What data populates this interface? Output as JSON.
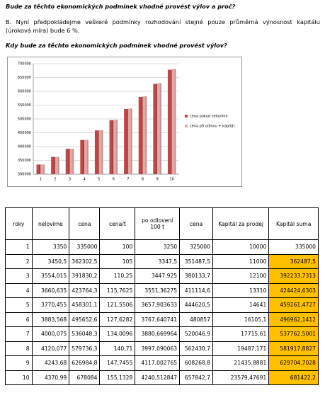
{
  "heading": "Bude za těchto ekonomických  podmínek  vhodné provést výlov a proč?",
  "paragraph": "B.  Nyní předpokládejme veškeré podmínky rozhodování stejné pouze průměrná výnosnost kapitálu (úroková míra) bude 6 %.",
  "question": "Kdy bude za těchto ekonomických  podmínek  vhodné provést výlov?",
  "chart_data": {
    "type": "bar",
    "categories": [
      "1",
      "2",
      "3",
      "4",
      "5",
      "6",
      "7",
      "8",
      "9",
      "10"
    ],
    "series": [
      {
        "name": "cena pokud nelovíme",
        "color": "#b94a48",
        "values": [
          335000,
          362302.5,
          391830.2,
          423764.3,
          458301.1,
          495652.6,
          536048.3,
          579736.3,
          626984.8,
          678084
        ]
      },
      {
        "name": "cena při odlovu + kapitál",
        "color": "#e3a8a6",
        "values": [
          335000,
          362487.5,
          392233.7313,
          424424.6303,
          459261.4727,
          496962.1412,
          537762.5001,
          581917.8827,
          629704.7028,
          681422.2
        ]
      }
    ],
    "ylim": [
      300000,
      700000
    ],
    "yticks": [
      300000,
      350000,
      400000,
      450000,
      500000,
      550000,
      600000,
      650000,
      700000
    ],
    "grid": true,
    "legend": "right"
  },
  "table": {
    "header": [
      "roky",
      "nelovíme",
      "cena",
      "cena/t",
      "po odlovení 100 t",
      "cena",
      "Kapitál za prodej",
      "Kapitál suma"
    ],
    "rows": [
      [
        "1",
        "3350",
        "335000",
        "100",
        "3250",
        "325000",
        "10000",
        "335000"
      ],
      [
        "2",
        "3450,5",
        "362302,5",
        "105",
        "3347,5",
        "351487,5",
        "11000",
        "362487,5"
      ],
      [
        "3",
        "3554,015",
        "391830,2",
        "110,25",
        "3447,925",
        "380133,7",
        "12100",
        "392233,7313"
      ],
      [
        "4",
        "3660,635",
        "423764,3",
        "115,7625",
        "3551,36275",
        "411114,6",
        "13310",
        "424424,6303"
      ],
      [
        "5",
        "3770,455",
        "458301,1",
        "121,5506",
        "3657,903633",
        "444620,5",
        "14641",
        "459261,4727"
      ],
      [
        "6",
        "3883,568",
        "495652,6",
        "127,6282",
        "3767,640741",
        "480857",
        "16105,1",
        "496962,1412"
      ],
      [
        "7",
        "4000,075",
        "536048,3",
        "134,0096",
        "3880,669964",
        "520046,9",
        "17715,61",
        "537762,5001"
      ],
      [
        "8",
        "4120,077",
        "579736,3",
        "140,71",
        "3997,090063",
        "562430,7",
        "19487,171",
        "581917,8827"
      ],
      [
        "9",
        "4243,68",
        "626984,8",
        "147,7455",
        "4117,002765",
        "608268,8",
        "21435,8881",
        "629704,7028"
      ],
      [
        "10",
        "4370,99",
        "678084",
        "155,1328",
        "4240,512847",
        "657842,7",
        "23579,47691",
        "681422,2"
      ]
    ],
    "highlight_from_row": 1
  }
}
